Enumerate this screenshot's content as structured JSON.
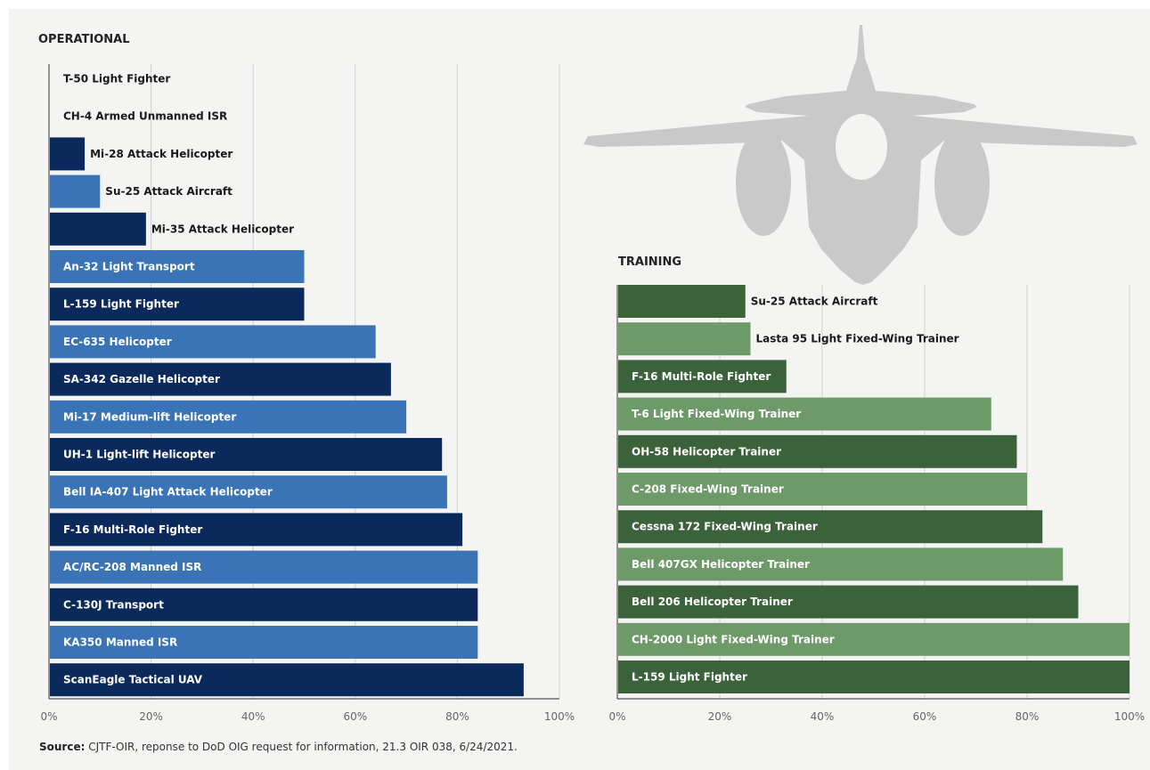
{
  "source": {
    "label": "Source:",
    "text": "CJTF-OIR, reponse to DoD OIG request for information, 21.3 OIR 038, 6/24/2021."
  },
  "colors": {
    "operational_dark": "#0b2a5b",
    "operational_light": "#3b74b6",
    "training_dark": "#3b623a",
    "training_light": "#6e9a69",
    "silhouette": "#c9c9c9",
    "grid": "#cfcfcf",
    "axis": "#555555"
  },
  "chart_data": [
    {
      "type": "bar",
      "orientation": "horizontal",
      "title": "OPERATIONAL",
      "xlabel": "",
      "ylabel": "",
      "xlim": [
        0,
        100
      ],
      "ticks": [
        "0%",
        "20%",
        "40%",
        "60%",
        "80%",
        "100%"
      ],
      "grid": true,
      "categories": [
        "T-50 Light Fighter",
        "CH-4 Armed Unmanned ISR",
        "Mi-28 Attack Helicopter",
        "Su-25 Attack Aircraft",
        "Mi-35 Attack Helicopter",
        "An-32 Light Transport",
        "L-159 Light Fighter",
        "EC-635 Helicopter",
        "SA-342 Gazelle Helicopter",
        "Mi-17 Medium-lift Helicopter",
        "UH-1 Light-lift Helicopter",
        "Bell IA-407 Light Attack Helicopter",
        "F-16 Multi-Role Fighter",
        "AC/RC-208 Manned ISR",
        "C-130J Transport",
        "KA350 Manned ISR",
        "ScanEagle Tactical UAV"
      ],
      "values": [
        0,
        0,
        7,
        10,
        19,
        50,
        50,
        64,
        67,
        70,
        77,
        78,
        81,
        84,
        84,
        84,
        93
      ]
    },
    {
      "type": "bar",
      "orientation": "horizontal",
      "title": "TRAINING",
      "xlabel": "",
      "ylabel": "",
      "xlim": [
        0,
        100
      ],
      "ticks": [
        "0%",
        "20%",
        "40%",
        "60%",
        "80%",
        "100%"
      ],
      "grid": true,
      "categories": [
        "Su-25 Attack Aircraft",
        "Lasta 95 Light Fixed-Wing Trainer",
        "F-16 Multi-Role Fighter",
        "T-6 Light Fixed-Wing Trainer",
        "OH-58 Helicopter Trainer",
        "C-208 Fixed-Wing Trainer",
        "Cessna 172 Fixed-Wing Trainer",
        "Bell 407GX Helicopter Trainer",
        "Bell 206 Helicopter Trainer",
        "CH-2000 Light Fixed-Wing Trainer",
        "L-159 Light Fighter"
      ],
      "values": [
        25,
        26,
        33,
        73,
        78,
        80,
        83,
        87,
        90,
        100,
        100
      ]
    }
  ]
}
